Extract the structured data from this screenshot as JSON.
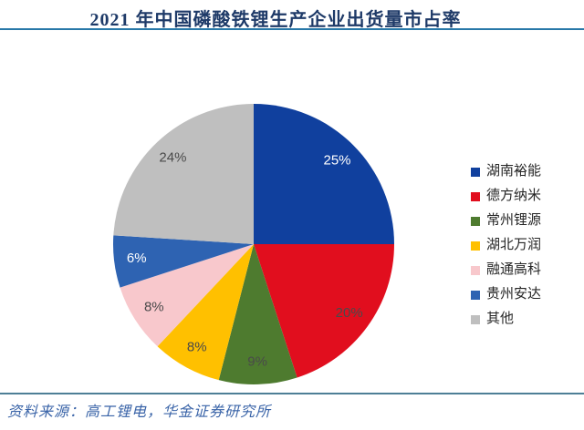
{
  "header": {
    "title": "2021 年中国磷酸铁锂生产企业出货量市占率"
  },
  "chart_data": {
    "type": "pie",
    "title": "2021 年中国磷酸铁锂生产企业出货量市占率",
    "categories": [
      "湖南裕能",
      "德方纳米",
      "常州锂源",
      "湖北万润",
      "融通高科",
      "贵州安达",
      "其他"
    ],
    "values": [
      25,
      20,
      9,
      8,
      8,
      6,
      24
    ],
    "unit": "%",
    "colors": [
      "#10409E",
      "#E10E1E",
      "#4E7B2F",
      "#FFC000",
      "#F8C8CC",
      "#2E63B2",
      "#BFBFBF"
    ],
    "label_colors": [
      "#FFFFFF",
      "#4A4A4A",
      "#4A4A4A",
      "#4A4A4A",
      "#4A4A4A",
      "#FFFFFF",
      "#4A4A4A"
    ],
    "start_angle_deg": 0,
    "direction": "clockwise",
    "legend_position": "right"
  },
  "footer": {
    "source": "资料来源：高工锂电，华金证券研究所"
  },
  "colors": {
    "title_text": "#1E3A68",
    "top_rule": "#2878A8",
    "bottom_rule": "#4E7F96",
    "source_text": "#3A64A8",
    "legend_text": "#262626"
  }
}
